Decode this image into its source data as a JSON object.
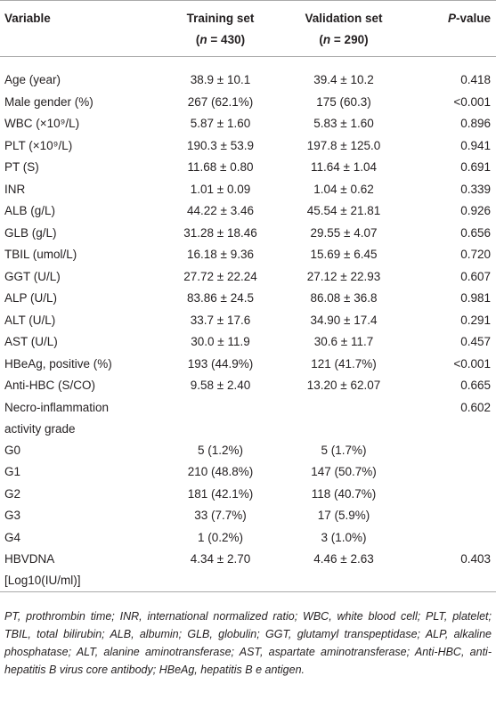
{
  "table": {
    "header": {
      "variable": "Variable",
      "training": {
        "title": "Training set",
        "sub": [
          "(",
          "n",
          " = 430)"
        ]
      },
      "validation": {
        "title": "Validation set",
        "sub": [
          "(",
          "n",
          " = 290)"
        ]
      },
      "p": [
        "P",
        "-value"
      ]
    },
    "rows": [
      [
        "Age (year)",
        "38.9 ± 10.1",
        "39.4 ± 10.2",
        "0.418"
      ],
      [
        "Male gender (%)",
        "267 (62.1%)",
        "175 (60.3)",
        "<0.001"
      ],
      [
        "WBC (×10⁹/L)",
        "5.87 ± 1.60",
        "5.83 ± 1.60",
        "0.896"
      ],
      [
        "PLT (×10⁹/L)",
        "190.3 ± 53.9",
        "197.8 ± 125.0",
        "0.941"
      ],
      [
        "PT (S)",
        "11.68 ± 0.80",
        "11.64 ± 1.04",
        "0.691"
      ],
      [
        "INR",
        "1.01 ± 0.09",
        "1.04 ± 0.62",
        "0.339"
      ],
      [
        "ALB (g/L)",
        "44.22 ± 3.46",
        "45.54 ± 21.81",
        "0.926"
      ],
      [
        "GLB (g/L)",
        "31.28 ± 18.46",
        "29.55 ± 4.07",
        "0.656"
      ],
      [
        "TBIL (umol/L)",
        "16.18 ± 9.36",
        "15.69 ± 6.45",
        "0.720"
      ],
      [
        "GGT (U/L)",
        "27.72 ± 22.24",
        "27.12 ± 22.93",
        "0.607"
      ],
      [
        "ALP (U/L)",
        "83.86 ± 24.5",
        "86.08 ± 36.8",
        "0.981"
      ],
      [
        "ALT (U/L)",
        "33.7 ± 17.6",
        "34.90 ± 17.4",
        "0.291"
      ],
      [
        "AST (U/L)",
        "30.0 ± 11.9",
        "30.6 ± 11.7",
        "0.457"
      ],
      [
        "HBeAg, positive (%)",
        "193 (44.9%)",
        "121 (41.7%)",
        "<0.001"
      ],
      [
        "Anti-HBC (S/CO)",
        "9.58 ± 2.40",
        "13.20 ± 62.07",
        "0.665"
      ],
      [
        "Necro-inflammation activity grade",
        null,
        null,
        "0.602"
      ],
      [
        "G0",
        "5 (1.2%)",
        "5 (1.7%)",
        null
      ],
      [
        "G1",
        "210 (48.8%)",
        "147 (50.7%)",
        null
      ],
      [
        "G2",
        "181 (42.1%)",
        "118 (40.7%)",
        null
      ],
      [
        "G3",
        "33 (7.7%)",
        "17 (5.9%)",
        null
      ],
      [
        "G4",
        "1 (0.2%)",
        "3 (1.0%)",
        null
      ],
      [
        "HBVDNA [Log10(IU/ml)]",
        "4.34 ± 2.70",
        "4.46 ± 2.63",
        "0.403"
      ]
    ],
    "footnote": "PT, prothrombin time; INR, international normalized ratio; WBC, white blood cell; PLT, platelet; TBIL, total bilirubin; ALB, albumin; GLB, globulin; GGT, glutamyl transpeptidase; ALP, alkaline phosphatase; ALT, alanine aminotransferase; AST, aspartate aminotransferase; Anti-HBC, anti-hepatitis B virus core antibody; HBeAg, hepatitis B e antigen."
  }
}
